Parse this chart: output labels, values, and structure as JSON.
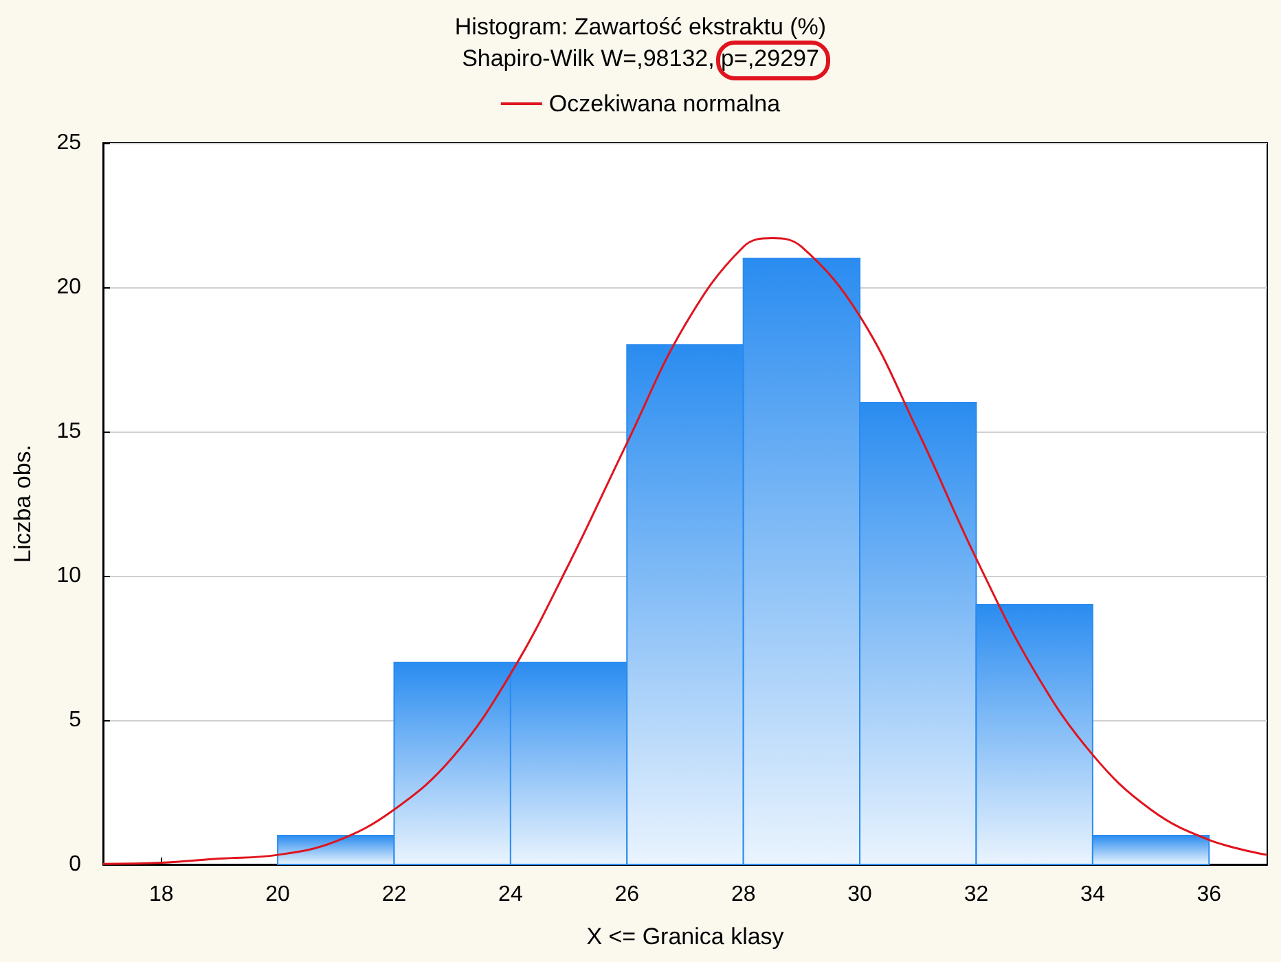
{
  "chart_data": {
    "type": "histogram",
    "title": "Histogram: Zawartość ekstraktu (%)",
    "subtitle": "Shapiro-Wilk W=,98132, p=,29297",
    "xlabel": "X <= Granica klasy",
    "ylabel": "Liczba obs.",
    "bins": [
      20,
      22,
      24,
      26,
      28,
      30,
      32,
      34,
      36
    ],
    "values": [
      1,
      7,
      7,
      18,
      21,
      16,
      9,
      1
    ],
    "color": "#2a8cf0",
    "series": [
      {
        "type": "line",
        "name": "Oczekiwana normalna",
        "color": "#e0141e",
        "x": [
          17,
          18,
          19,
          20,
          21,
          22,
          23,
          24,
          25,
          26,
          27,
          28,
          28.5,
          29,
          30,
          31,
          32,
          33,
          34,
          35,
          36,
          37
        ],
        "values": [
          0.02,
          0.06,
          0.2,
          0.33,
          0.8,
          1.9,
          3.7,
          6.6,
          10.4,
          14.6,
          18.7,
          21.4,
          21.7,
          21.4,
          19.0,
          15.0,
          10.6,
          6.7,
          3.8,
          1.9,
          0.85,
          0.33
        ]
      }
    ],
    "xlim": [
      17,
      37
    ],
    "xticks": [
      18,
      20,
      22,
      24,
      26,
      28,
      30,
      32,
      34,
      36
    ],
    "ylim": [
      0,
      25
    ],
    "yticks": [
      0,
      5,
      10,
      15,
      20,
      25
    ],
    "grid": "y",
    "legend": "top",
    "marker": "none"
  }
}
